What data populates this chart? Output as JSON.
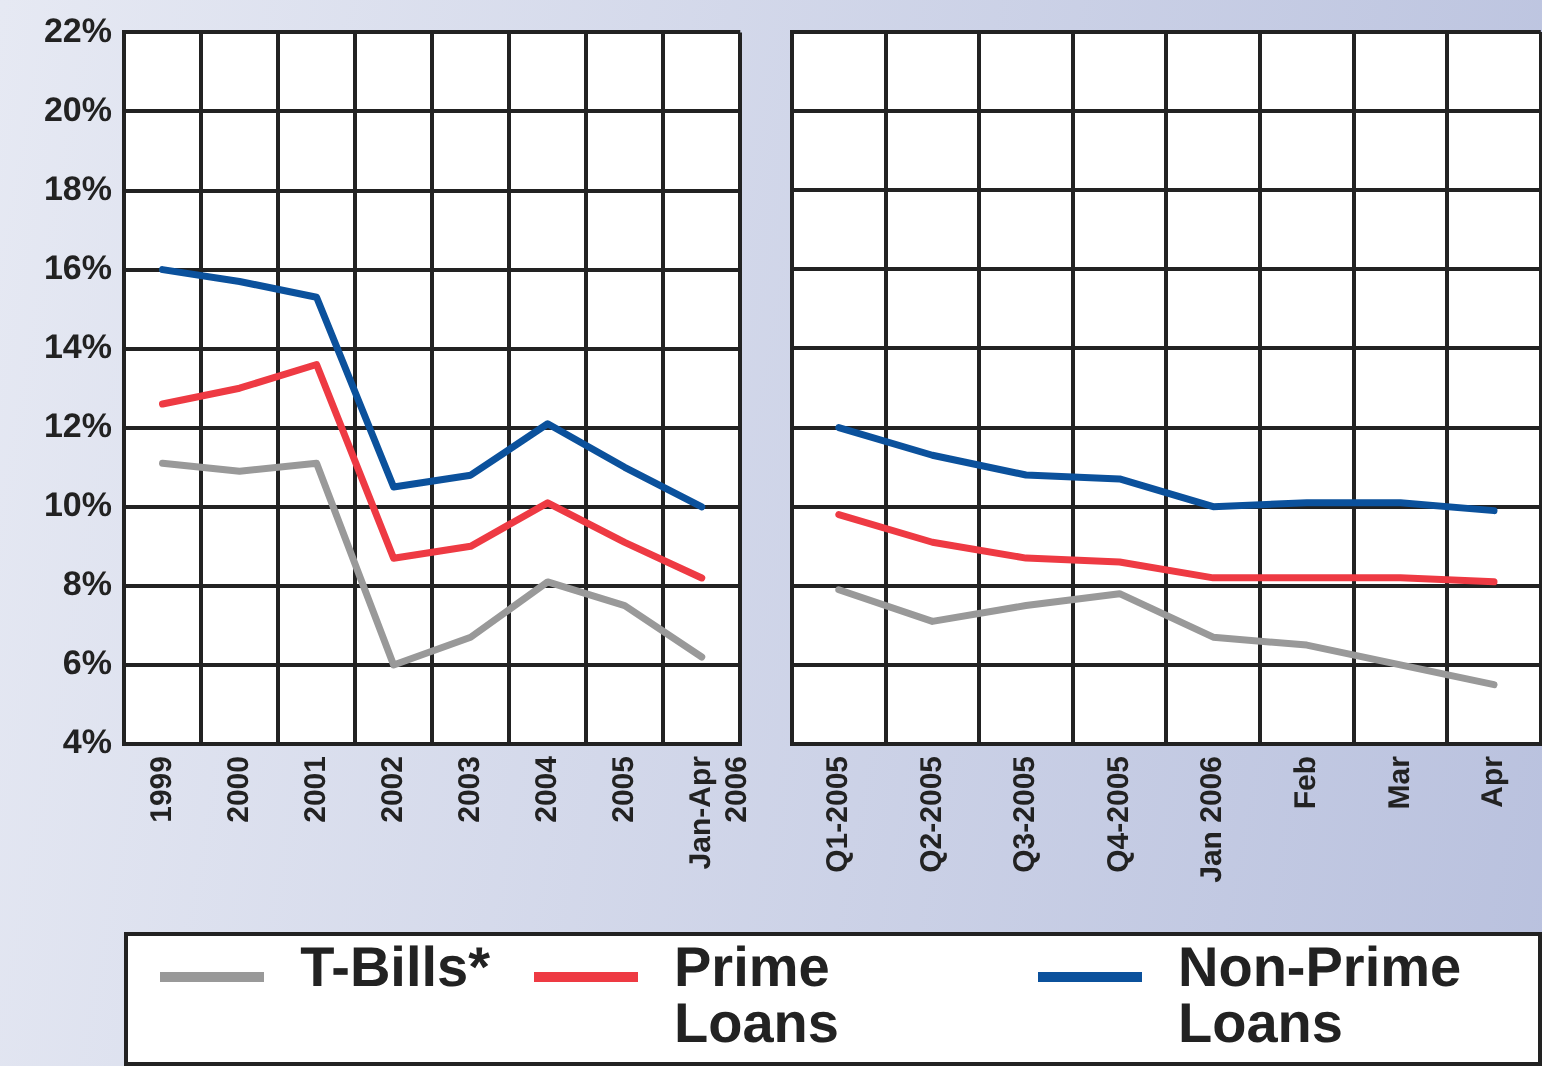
{
  "chart_data": [
    {
      "type": "line",
      "categories": [
        "1999",
        "2000",
        "2001",
        "2002",
        "2003",
        "2004",
        "2005",
        "Jan-Apr\n2006"
      ],
      "series": [
        {
          "name": "T-Bills*",
          "color": "#999999",
          "values": [
            11.1,
            10.9,
            11.1,
            6.0,
            6.7,
            8.1,
            7.5,
            6.2
          ]
        },
        {
          "name": "Prime Loans",
          "color": "#ee3a43",
          "values": [
            12.6,
            13.0,
            13.6,
            8.7,
            9.0,
            10.1,
            9.1,
            8.2
          ]
        },
        {
          "name": "Non-Prime Loans",
          "color": "#0b519c",
          "values": [
            16.0,
            15.7,
            15.3,
            10.5,
            10.8,
            12.1,
            11.0,
            10.0
          ]
        }
      ],
      "ylim": [
        4,
        22
      ],
      "yticks": [
        {
          "value": 4,
          "label": "4%"
        },
        {
          "value": 6,
          "label": "6%"
        },
        {
          "value": 8,
          "label": "8%"
        },
        {
          "value": 10,
          "label": "10%"
        },
        {
          "value": 12,
          "label": "12%"
        },
        {
          "value": 14,
          "label": "14%"
        },
        {
          "value": 16,
          "label": "16%"
        },
        {
          "value": 18,
          "label": "18%"
        },
        {
          "value": 20,
          "label": "20%"
        },
        {
          "value": 22,
          "label": "22%"
        }
      ],
      "grid": true,
      "legend": "bottom",
      "marker": "none",
      "line_style": "solid"
    },
    {
      "type": "line",
      "categories": [
        "Q1-2005",
        "Q2-2005",
        "Q3-2005",
        "Q4-2005",
        "Jan 2006",
        "Feb",
        "Mar",
        "Apr"
      ],
      "series": [
        {
          "name": "T-Bills*",
          "color": "#999999",
          "values": [
            7.9,
            7.1,
            7.5,
            7.8,
            6.7,
            6.5,
            6.0,
            5.5
          ]
        },
        {
          "name": "Prime Loans",
          "color": "#ee3a43",
          "values": [
            9.8,
            9.1,
            8.7,
            8.6,
            8.2,
            8.2,
            8.2,
            8.1
          ]
        },
        {
          "name": "Non-Prime Loans",
          "color": "#0b519c",
          "values": [
            12.0,
            11.3,
            10.8,
            10.7,
            10.0,
            10.1,
            10.1,
            9.9
          ]
        }
      ],
      "ylim": [
        4,
        22
      ],
      "yticks": [
        4,
        6,
        8,
        10,
        12,
        14,
        16,
        18,
        20,
        22
      ],
      "grid": true,
      "tick_labels": "x",
      "legend": "bottom",
      "marker": "none",
      "line_style": "solid"
    }
  ]
}
